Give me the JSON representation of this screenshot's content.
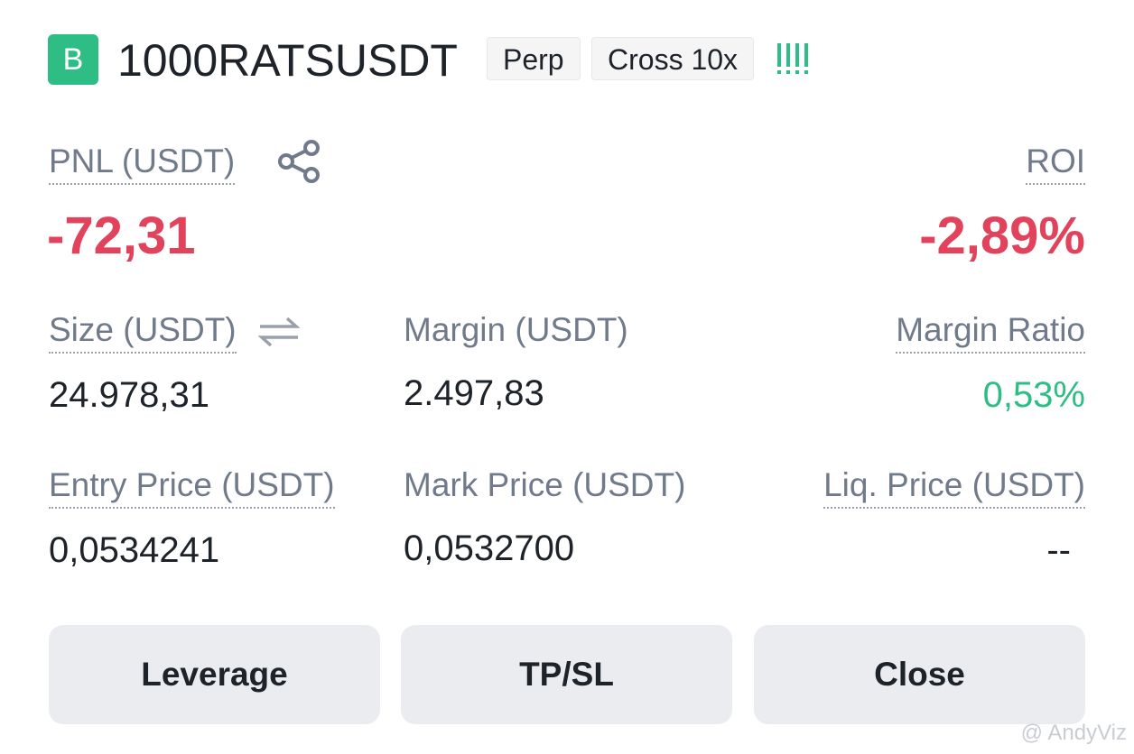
{
  "header": {
    "badge": "B",
    "symbol": "1000RATSUSDT",
    "tags": [
      "Perp",
      "Cross 10x"
    ]
  },
  "pnl": {
    "label": "PNL (USDT)",
    "value": "-72,31"
  },
  "roi": {
    "label": "ROI",
    "value": "-2,89%"
  },
  "fields": [
    {
      "label": "Size (USDT)",
      "value": "24.978,31"
    },
    {
      "label": "Margin (USDT)",
      "value": "2.497,83"
    },
    {
      "label": "Margin Ratio",
      "value": "0,53%"
    },
    {
      "label": "Entry Price (USDT)",
      "value": "0,0534241"
    },
    {
      "label": "Mark Price (USDT)",
      "value": "0,0532700"
    },
    {
      "label": "Liq. Price (USDT)",
      "value": "--"
    }
  ],
  "buttons": [
    "Leverage",
    "TP/SL",
    "Close"
  ],
  "watermark": "@ AndyViz"
}
